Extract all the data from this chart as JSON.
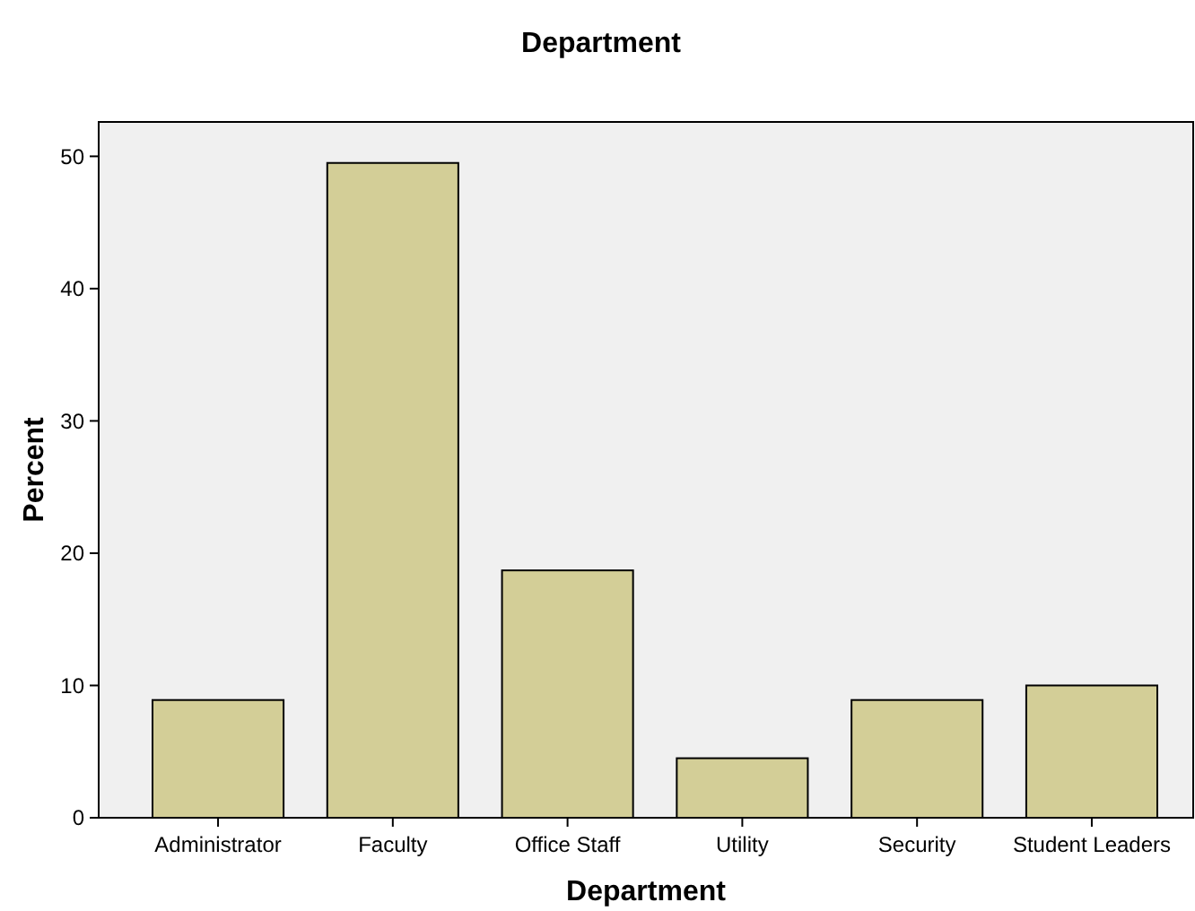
{
  "chart_data": {
    "type": "bar",
    "title": "Department",
    "xlabel": "Department",
    "ylabel": "Percent",
    "categories": [
      "Administrator",
      "Faculty",
      "Office Staff",
      "Utility",
      "Security",
      "Student Leaders"
    ],
    "values": [
      8.9,
      49.5,
      18.7,
      4.5,
      8.9,
      10.0
    ],
    "color": "#d3ce97",
    "ylim": [
      0,
      52.6
    ],
    "yticks": [
      0,
      10,
      20,
      30,
      40,
      50
    ],
    "grid": false
  }
}
